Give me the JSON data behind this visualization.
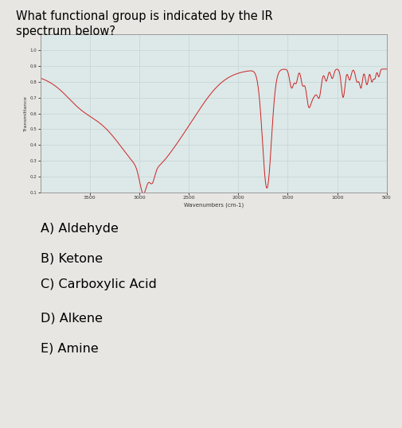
{
  "question_line1": "What functional group is indicated by the IR",
  "question_line2": "spectrum below?",
  "choices": [
    "A) Aldehyde",
    "B) Ketone",
    "C) Carboxylic Acid",
    "D) Alkene",
    "E) Amine"
  ],
  "bg_color": "#e8e6e3",
  "plot_bg": "#dde8e8",
  "line_color": "#cc2222",
  "grid_color": "#c8d8d8",
  "xlabel": "Wavenumbers (cm-1)",
  "ylabel": "Transmittance",
  "xmin": 4000,
  "xmax": 500,
  "ymin": 0.1,
  "ymax": 1.1,
  "question_fontsize": 10.5,
  "choices_fontsize": 11.5
}
